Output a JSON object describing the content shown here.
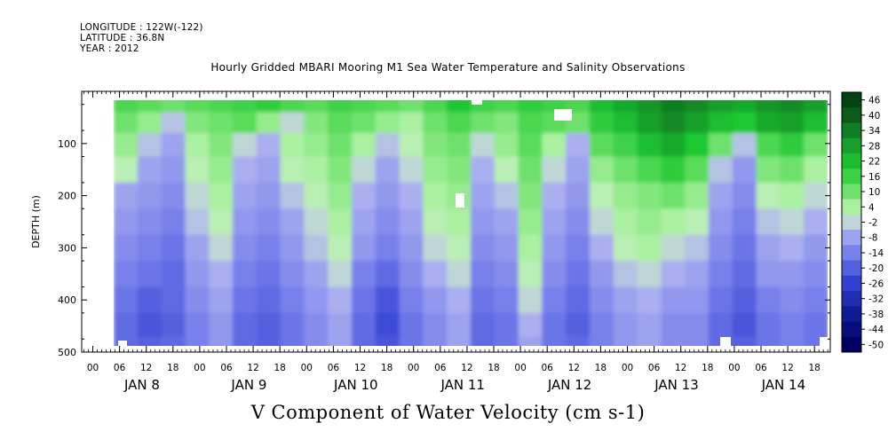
{
  "header": {
    "longitude": "LONGITUDE : 122W(-122)",
    "latitude": "LATITUDE : 36.8N",
    "year": "YEAR : 2012"
  },
  "chart_data": {
    "type": "heatmap",
    "title": "Hourly Gridded MBARI Mooring M1 Sea Water Temperature and Salinity Observations",
    "xlabel": "V Component of Water Velocity (cm s-1)",
    "ylabel": "DEPTH (m)",
    "y_axis": {
      "range": [
        0,
        500
      ],
      "inverted": true,
      "ticks": [
        100,
        200,
        300,
        400,
        500
      ],
      "tick_labels": [
        "100",
        "200",
        "300",
        "400",
        "500"
      ]
    },
    "x_axis": {
      "hour_labels": [
        "00",
        "06",
        "12",
        "18",
        "00",
        "06",
        "12",
        "18",
        "00",
        "06",
        "12",
        "18",
        "00",
        "06",
        "12",
        "18",
        "00",
        "06",
        "12",
        "18",
        "00",
        "06",
        "12",
        "18",
        "00",
        "06",
        "12",
        "18"
      ],
      "day_labels": [
        "JAN  8",
        "JAN  9",
        "JAN 10",
        "JAN 11",
        "JAN 12",
        "JAN 13",
        "JAN 14"
      ]
    },
    "colorbar": {
      "tick_labels": [
        "46",
        "40",
        "34",
        "28",
        "22",
        "16",
        "10",
        "4",
        "-2",
        "-8",
        "-14",
        "-20",
        "-26",
        "-32",
        "-38",
        "-44",
        "-50"
      ],
      "range": [
        -50,
        50
      ]
    },
    "colors": {
      "strong_positive": "#0a3a12",
      "positive": "#22c83a",
      "weak_positive": "#a6f0a0",
      "weak_negative": "#b0b4f0",
      "negative": "#7f86ee",
      "strong_negative": "#121a8c"
    },
    "field_description_rows": [
      {
        "depth": 20,
        "values": [
          14,
          12,
          10,
          12,
          14,
          16,
          18,
          14,
          12,
          16,
          14,
          12,
          10,
          14,
          20,
          16,
          14,
          18,
          16,
          14,
          22,
          26,
          30,
          34,
          32,
          28,
          26,
          30,
          32,
          28
        ]
      },
      {
        "depth": 60,
        "values": [
          10,
          6,
          -4,
          8,
          10,
          12,
          6,
          -2,
          8,
          12,
          10,
          6,
          4,
          10,
          14,
          10,
          8,
          14,
          12,
          10,
          18,
          22,
          28,
          32,
          28,
          22,
          20,
          26,
          28,
          22
        ]
      },
      {
        "depth": 100,
        "values": [
          6,
          -4,
          -8,
          4,
          8,
          -2,
          -6,
          4,
          6,
          10,
          4,
          -4,
          2,
          8,
          10,
          -2,
          6,
          12,
          4,
          -6,
          12,
          16,
          22,
          26,
          20,
          10,
          -4,
          14,
          18,
          10
        ]
      },
      {
        "depth": 150,
        "values": [
          2,
          -8,
          -10,
          2,
          6,
          -6,
          -8,
          2,
          4,
          8,
          -2,
          -8,
          -2,
          6,
          8,
          -6,
          2,
          10,
          -2,
          -8,
          6,
          10,
          14,
          18,
          12,
          -4,
          -10,
          8,
          10,
          4
        ]
      },
      {
        "depth": 200,
        "values": [
          -8,
          -10,
          -12,
          -2,
          4,
          -8,
          -10,
          -4,
          2,
          6,
          -6,
          -10,
          -6,
          4,
          6,
          -8,
          -4,
          8,
          -6,
          -10,
          2,
          6,
          8,
          10,
          6,
          -8,
          -12,
          2,
          4,
          -2
        ]
      },
      {
        "depth": 250,
        "values": [
          -10,
          -12,
          -14,
          -4,
          2,
          -10,
          -12,
          -8,
          -2,
          4,
          -8,
          -12,
          -8,
          2,
          4,
          -10,
          -8,
          6,
          -8,
          -12,
          -2,
          4,
          6,
          4,
          2,
          -10,
          -14,
          -4,
          -2,
          -6
        ]
      },
      {
        "depth": 300,
        "values": [
          -12,
          -14,
          -16,
          -8,
          -2,
          -12,
          -14,
          -10,
          -4,
          2,
          -10,
          -14,
          -10,
          -2,
          2,
          -12,
          -10,
          4,
          -10,
          -14,
          -6,
          2,
          4,
          -2,
          -4,
          -12,
          -16,
          -8,
          -6,
          -10
        ]
      },
      {
        "depth": 350,
        "values": [
          -14,
          -16,
          -18,
          -10,
          -6,
          -14,
          -16,
          -12,
          -8,
          -2,
          -14,
          -18,
          -12,
          -6,
          -2,
          -14,
          -12,
          2,
          -12,
          -16,
          -10,
          -4,
          -2,
          -6,
          -8,
          -14,
          -18,
          -10,
          -10,
          -12
        ]
      },
      {
        "depth": 400,
        "values": [
          -16,
          -20,
          -18,
          -12,
          -8,
          -16,
          -18,
          -14,
          -10,
          -6,
          -16,
          -22,
          -14,
          -10,
          -6,
          -16,
          -14,
          -2,
          -14,
          -18,
          -12,
          -8,
          -6,
          -10,
          -10,
          -16,
          -20,
          -14,
          -12,
          -14
        ]
      },
      {
        "depth": 450,
        "values": [
          -18,
          -22,
          -20,
          -14,
          -10,
          -18,
          -20,
          -16,
          -12,
          -8,
          -18,
          -24,
          -16,
          -12,
          -8,
          -18,
          -16,
          -6,
          -16,
          -20,
          -14,
          -10,
          -8,
          -12,
          -12,
          -18,
          -22,
          -16,
          -14,
          -16
        ]
      },
      {
        "depth": 490,
        "values": [
          -18,
          -20,
          -18,
          -14,
          -10,
          -18,
          -20,
          -16,
          -12,
          -8,
          -18,
          -22,
          -16,
          -12,
          -8,
          -18,
          -16,
          -8,
          -16,
          -18,
          -14,
          -10,
          -8,
          -12,
          -12,
          -18,
          -20,
          -16,
          -14,
          -16
        ]
      }
    ]
  }
}
